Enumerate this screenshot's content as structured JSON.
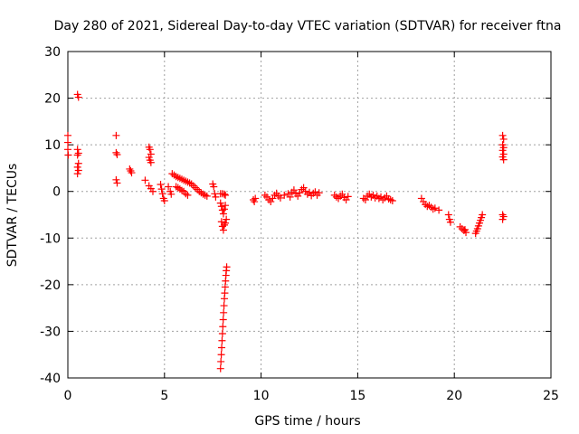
{
  "chart_data": {
    "type": "scatter",
    "title": "Day 280 of 2021, Sidereal Day-to-day VTEC variation (SDTVAR) for receiver ftna",
    "xlabel": "GPS time / hours",
    "ylabel": "SDTVAR / TECUs",
    "xlim": [
      0,
      25
    ],
    "ylim": [
      -40,
      30
    ],
    "xticks": [
      0,
      5,
      10,
      15,
      20,
      25
    ],
    "yticks": [
      -40,
      -30,
      -20,
      -10,
      0,
      10,
      20,
      30
    ],
    "grid": true,
    "marker": "+",
    "color": "#ff0000",
    "series": [
      {
        "name": "SDTVAR",
        "points": [
          [
            0.0,
            12.0
          ],
          [
            0.0,
            10.5
          ],
          [
            0.0,
            9.0
          ],
          [
            0.02,
            7.8
          ],
          [
            0.5,
            20.8
          ],
          [
            0.55,
            20.2
          ],
          [
            0.5,
            9.0
          ],
          [
            0.55,
            8.2
          ],
          [
            0.5,
            7.8
          ],
          [
            0.55,
            6.0
          ],
          [
            0.5,
            5.2
          ],
          [
            0.55,
            4.5
          ],
          [
            0.5,
            3.8
          ],
          [
            2.5,
            12.0
          ],
          [
            2.5,
            8.3
          ],
          [
            2.55,
            7.9
          ],
          [
            2.5,
            2.5
          ],
          [
            2.55,
            1.8
          ],
          [
            3.2,
            4.8
          ],
          [
            3.25,
            4.4
          ],
          [
            3.3,
            4.0
          ],
          [
            4.0,
            2.4
          ],
          [
            4.2,
            9.5
          ],
          [
            4.25,
            9.0
          ],
          [
            4.3,
            8.0
          ],
          [
            4.2,
            7.3
          ],
          [
            4.25,
            6.7
          ],
          [
            4.3,
            6.2
          ],
          [
            4.2,
            1.2
          ],
          [
            4.3,
            0.6
          ],
          [
            4.4,
            0.0
          ],
          [
            4.8,
            1.5
          ],
          [
            4.85,
            0.5
          ],
          [
            4.9,
            -0.5
          ],
          [
            4.95,
            -1.5
          ],
          [
            5.0,
            -2.0
          ],
          [
            5.2,
            1.0
          ],
          [
            5.3,
            0.0
          ],
          [
            5.35,
            -0.6
          ],
          [
            5.4,
            3.8
          ],
          [
            5.5,
            3.5
          ],
          [
            5.6,
            3.2
          ],
          [
            5.7,
            3.0
          ],
          [
            5.8,
            2.8
          ],
          [
            5.9,
            2.6
          ],
          [
            6.0,
            2.4
          ],
          [
            6.1,
            2.2
          ],
          [
            6.2,
            2.0
          ],
          [
            6.3,
            1.8
          ],
          [
            6.4,
            1.6
          ],
          [
            5.6,
            1.0
          ],
          [
            5.7,
            0.8
          ],
          [
            5.8,
            0.5
          ],
          [
            5.9,
            0.2
          ],
          [
            6.0,
            0.0
          ],
          [
            6.1,
            -0.5
          ],
          [
            6.2,
            -0.8
          ],
          [
            6.5,
            1.2
          ],
          [
            6.6,
            0.8
          ],
          [
            6.7,
            0.4
          ],
          [
            6.8,
            0.0
          ],
          [
            6.9,
            -0.3
          ],
          [
            7.0,
            -0.6
          ],
          [
            7.1,
            -0.8
          ],
          [
            7.2,
            -1.0
          ],
          [
            7.5,
            1.6
          ],
          [
            7.55,
            1.0
          ],
          [
            7.6,
            -0.5
          ],
          [
            7.65,
            -1.2
          ],
          [
            7.9,
            -0.5
          ],
          [
            8.0,
            -0.5
          ],
          [
            8.1,
            -0.6
          ],
          [
            8.15,
            -0.8
          ],
          [
            7.9,
            -2.5
          ],
          [
            7.95,
            -3.2
          ],
          [
            8.0,
            -4.0
          ],
          [
            8.05,
            -4.8
          ],
          [
            8.1,
            -3.8
          ],
          [
            8.15,
            -3.0
          ],
          [
            7.95,
            -6.5
          ],
          [
            8.0,
            -7.5
          ],
          [
            8.05,
            -8.3
          ],
          [
            8.1,
            -7.2
          ],
          [
            8.15,
            -6.8
          ],
          [
            8.2,
            -6.0
          ],
          [
            7.9,
            -38.0
          ],
          [
            7.92,
            -36.5
          ],
          [
            7.94,
            -35.0
          ],
          [
            7.96,
            -33.5
          ],
          [
            7.98,
            -32.0
          ],
          [
            8.0,
            -30.5
          ],
          [
            8.02,
            -29.0
          ],
          [
            8.04,
            -27.5
          ],
          [
            8.06,
            -26.0
          ],
          [
            8.08,
            -24.5
          ],
          [
            8.1,
            -23.0
          ],
          [
            8.12,
            -21.8
          ],
          [
            8.14,
            -20.5
          ],
          [
            8.16,
            -19.2
          ],
          [
            8.18,
            -18.0
          ],
          [
            8.2,
            -17.0
          ],
          [
            8.22,
            -16.2
          ],
          [
            9.6,
            -1.8
          ],
          [
            9.65,
            -2.2
          ],
          [
            9.7,
            -1.5
          ],
          [
            10.2,
            -0.8
          ],
          [
            10.3,
            -1.2
          ],
          [
            10.4,
            -1.8
          ],
          [
            10.5,
            -2.2
          ],
          [
            10.6,
            -1.5
          ],
          [
            10.7,
            -0.8
          ],
          [
            10.8,
            -0.4
          ],
          [
            10.9,
            -1.0
          ],
          [
            11.0,
            -1.4
          ],
          [
            11.2,
            -0.8
          ],
          [
            11.4,
            -0.5
          ],
          [
            11.5,
            -1.2
          ],
          [
            11.6,
            -0.2
          ],
          [
            11.7,
            0.3
          ],
          [
            11.8,
            -0.5
          ],
          [
            11.9,
            -1.0
          ],
          [
            12.0,
            -0.3
          ],
          [
            12.1,
            0.4
          ],
          [
            12.2,
            0.8
          ],
          [
            12.3,
            0.0
          ],
          [
            12.4,
            -0.6
          ],
          [
            12.5,
            -0.2
          ],
          [
            12.6,
            -0.9
          ],
          [
            12.7,
            -0.4
          ],
          [
            12.8,
            -0.1
          ],
          [
            12.9,
            -0.8
          ],
          [
            13.0,
            -0.3
          ],
          [
            13.8,
            -0.8
          ],
          [
            13.9,
            -1.2
          ],
          [
            14.0,
            -1.5
          ],
          [
            14.1,
            -1.0
          ],
          [
            14.2,
            -0.6
          ],
          [
            14.3,
            -1.3
          ],
          [
            14.4,
            -1.8
          ],
          [
            14.5,
            -1.1
          ],
          [
            15.3,
            -1.5
          ],
          [
            15.4,
            -1.8
          ],
          [
            15.5,
            -1.0
          ],
          [
            15.6,
            -0.6
          ],
          [
            15.7,
            -1.2
          ],
          [
            15.8,
            -0.8
          ],
          [
            15.9,
            -1.4
          ],
          [
            16.0,
            -1.0
          ],
          [
            16.1,
            -1.5
          ],
          [
            16.2,
            -1.2
          ],
          [
            16.3,
            -1.8
          ],
          [
            16.4,
            -1.4
          ],
          [
            16.5,
            -1.0
          ],
          [
            16.6,
            -1.6
          ],
          [
            16.7,
            -1.8
          ],
          [
            16.8,
            -2.0
          ],
          [
            18.3,
            -1.5
          ],
          [
            18.4,
            -2.2
          ],
          [
            18.5,
            -2.8
          ],
          [
            18.6,
            -3.2
          ],
          [
            18.7,
            -3.0
          ],
          [
            18.8,
            -3.4
          ],
          [
            18.9,
            -3.8
          ],
          [
            19.0,
            -3.6
          ],
          [
            19.2,
            -4.0
          ],
          [
            19.7,
            -5.0
          ],
          [
            19.75,
            -6.0
          ],
          [
            19.8,
            -6.6
          ],
          [
            20.3,
            -7.6
          ],
          [
            20.4,
            -8.0
          ],
          [
            20.5,
            -8.4
          ],
          [
            20.6,
            -8.8
          ],
          [
            20.55,
            -8.2
          ],
          [
            21.1,
            -9.0
          ],
          [
            21.15,
            -8.5
          ],
          [
            21.2,
            -8.0
          ],
          [
            21.25,
            -7.4
          ],
          [
            21.3,
            -6.8
          ],
          [
            21.35,
            -6.2
          ],
          [
            21.4,
            -5.6
          ],
          [
            21.45,
            -5.0
          ],
          [
            22.5,
            12.0
          ],
          [
            22.55,
            11.2
          ],
          [
            22.5,
            10.0
          ],
          [
            22.55,
            9.4
          ],
          [
            22.5,
            8.8
          ],
          [
            22.55,
            8.0
          ],
          [
            22.5,
            7.4
          ],
          [
            22.55,
            6.8
          ],
          [
            22.5,
            -5.0
          ],
          [
            22.55,
            -5.4
          ],
          [
            22.5,
            -6.0
          ]
        ]
      }
    ]
  }
}
